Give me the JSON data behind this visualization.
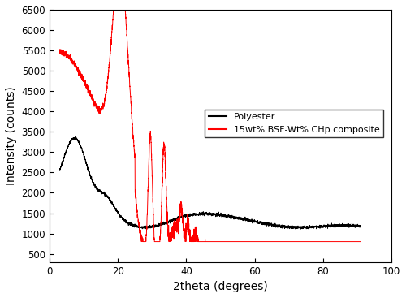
{
  "xlabel": "2theta (degrees)",
  "ylabel": "Intensity (counts)",
  "xlim": [
    0,
    100
  ],
  "ylim": [
    300,
    6500
  ],
  "yticks": [
    500,
    1000,
    1500,
    2000,
    2500,
    3000,
    3500,
    4000,
    4500,
    5000,
    5500,
    6000,
    6500
  ],
  "xticks": [
    0,
    20,
    40,
    60,
    80,
    100
  ],
  "legend_labels": [
    "Polyester",
    "15wt% BSF-Wt% CHp composite"
  ],
  "line_colors": [
    "black",
    "red"
  ],
  "background_color": "#ffffff",
  "linewidth": 0.7
}
